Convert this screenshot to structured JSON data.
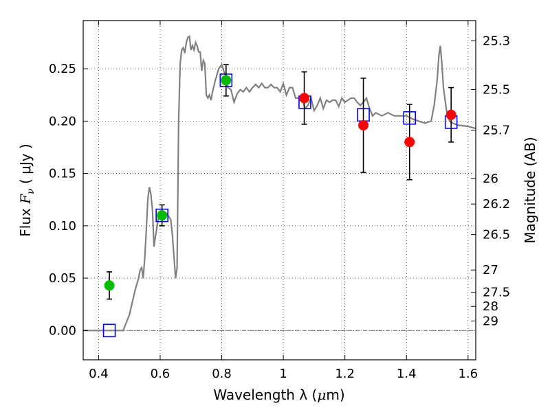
{
  "chart_data": {
    "type": "line",
    "xlabel": {
      "main": "Wavelength  λ (",
      "unit": "μ",
      "end": "m)"
    },
    "ylabel": {
      "main": "Flux  ",
      "sym": "F",
      "sub": "ν",
      "unit": "  ( μJy )"
    },
    "y2label": "Magnitude (AB)",
    "xlim": [
      0.35,
      1.625
    ],
    "ylim": [
      -0.028,
      0.296
    ],
    "grid": true,
    "x_ticks": [
      0.4,
      0.6,
      0.8,
      1.0,
      1.2,
      1.4,
      1.6
    ],
    "x_tick_labels": [
      "0.4",
      "0.6",
      "0.8",
      "1",
      "1.2",
      "1.4",
      "1.6"
    ],
    "y_ticks": [
      0.0,
      0.05,
      0.1,
      0.15,
      0.2,
      0.25
    ],
    "y_tick_labels": [
      "0.00",
      "0.05",
      "0.10",
      "0.15",
      "0.20",
      "0.25"
    ],
    "mag_ticks": [
      {
        "label": "25.3",
        "flux": 0.2766
      },
      {
        "label": "25.5",
        "flux": 0.2301
      },
      {
        "label": "25.7",
        "flux": 0.1914
      },
      {
        "label": "26",
        "flux": 0.1452
      },
      {
        "label": "26.2",
        "flux": 0.1208
      },
      {
        "label": "26.5",
        "flux": 0.0916
      },
      {
        "label": "27",
        "flux": 0.0578
      },
      {
        "label": "27.5",
        "flux": 0.0365
      },
      {
        "label": "28",
        "flux": 0.023
      },
      {
        "label": "29",
        "flux": 0.0091
      }
    ],
    "model_spectrum": {
      "color": "#808080",
      "x": [
        0.35,
        0.48,
        0.5,
        0.52,
        0.53,
        0.535,
        0.54,
        0.545,
        0.55,
        0.555,
        0.56,
        0.565,
        0.57,
        0.575,
        0.58,
        0.585,
        0.59,
        0.595,
        0.6,
        0.61,
        0.62,
        0.625,
        0.63,
        0.635,
        0.64,
        0.645,
        0.65,
        0.655,
        0.66,
        0.665,
        0.67,
        0.675,
        0.68,
        0.685,
        0.69,
        0.695,
        0.7,
        0.705,
        0.71,
        0.715,
        0.72,
        0.725,
        0.73,
        0.735,
        0.74,
        0.745,
        0.75,
        0.755,
        0.76,
        0.765,
        0.77,
        0.78,
        0.79,
        0.8,
        0.81,
        0.82,
        0.83,
        0.84,
        0.85,
        0.86,
        0.87,
        0.88,
        0.89,
        0.9,
        0.91,
        0.92,
        0.93,
        0.94,
        0.95,
        0.96,
        0.97,
        0.98,
        0.99,
        1.0,
        1.01,
        1.02,
        1.03,
        1.04,
        1.05,
        1.06,
        1.07,
        1.08,
        1.09,
        1.1,
        1.11,
        1.12,
        1.13,
        1.14,
        1.15,
        1.16,
        1.17,
        1.18,
        1.19,
        1.2,
        1.21,
        1.22,
        1.23,
        1.24,
        1.25,
        1.26,
        1.27,
        1.28,
        1.29,
        1.3,
        1.32,
        1.34,
        1.36,
        1.38,
        1.4,
        1.42,
        1.44,
        1.46,
        1.48,
        1.49,
        1.5,
        1.505,
        1.51,
        1.515,
        1.52,
        1.53,
        1.54,
        1.55,
        1.57,
        1.6,
        1.625
      ],
      "y": [
        0.0,
        0.0,
        0.015,
        0.04,
        0.05,
        0.058,
        0.06,
        0.05,
        0.07,
        0.096,
        0.125,
        0.137,
        0.13,
        0.115,
        0.08,
        0.09,
        0.1,
        0.11,
        0.113,
        0.113,
        0.112,
        0.11,
        0.108,
        0.105,
        0.09,
        0.07,
        0.05,
        0.06,
        0.2,
        0.255,
        0.268,
        0.27,
        0.265,
        0.275,
        0.28,
        0.281,
        0.268,
        0.272,
        0.268,
        0.275,
        0.272,
        0.266,
        0.266,
        0.248,
        0.258,
        0.255,
        0.225,
        0.222,
        0.225,
        0.22,
        0.228,
        0.24,
        0.25,
        0.254,
        0.245,
        0.232,
        0.23,
        0.218,
        0.226,
        0.23,
        0.228,
        0.232,
        0.228,
        0.232,
        0.235,
        0.232,
        0.236,
        0.232,
        0.232,
        0.235,
        0.232,
        0.232,
        0.228,
        0.236,
        0.225,
        0.232,
        0.232,
        0.222,
        0.222,
        0.224,
        0.212,
        0.215,
        0.222,
        0.21,
        0.215,
        0.222,
        0.212,
        0.22,
        0.218,
        0.22,
        0.22,
        0.214,
        0.222,
        0.218,
        0.22,
        0.222,
        0.222,
        0.218,
        0.215,
        0.218,
        0.222,
        0.212,
        0.205,
        0.208,
        0.205,
        0.208,
        0.205,
        0.205,
        0.205,
        0.202,
        0.2,
        0.198,
        0.2,
        0.215,
        0.24,
        0.262,
        0.272,
        0.255,
        0.232,
        0.21,
        0.2,
        0.198,
        0.196,
        0.195,
        0.193
      ]
    },
    "model_photometry": {
      "marker": "open-square",
      "color": "#0000ff",
      "points": [
        [
          0.435,
          0.0
        ],
        [
          0.606,
          0.11
        ],
        [
          0.814,
          0.239
        ],
        [
          1.07,
          0.218
        ],
        [
          1.26,
          0.206
        ],
        [
          1.41,
          0.203
        ],
        [
          1.545,
          0.199
        ]
      ]
    },
    "observed": [
      {
        "x": 0.435,
        "y": 0.043,
        "err": 0.013,
        "color": "#00bb00"
      },
      {
        "x": 0.606,
        "y": 0.11,
        "err": 0.01,
        "color": "#00bb00"
      },
      {
        "x": 0.814,
        "y": 0.239,
        "err": 0.015,
        "color": "#00bb00"
      },
      {
        "x": 1.068,
        "y": 0.222,
        "err": 0.025,
        "color": "#ff0000"
      },
      {
        "x": 1.26,
        "y": 0.196,
        "err": 0.045,
        "color": "#ff0000"
      },
      {
        "x": 1.41,
        "y": 0.18,
        "err": 0.036,
        "color": "#ff0000"
      },
      {
        "x": 1.545,
        "y": 0.206,
        "err": 0.026,
        "color": "#ff0000"
      }
    ]
  }
}
